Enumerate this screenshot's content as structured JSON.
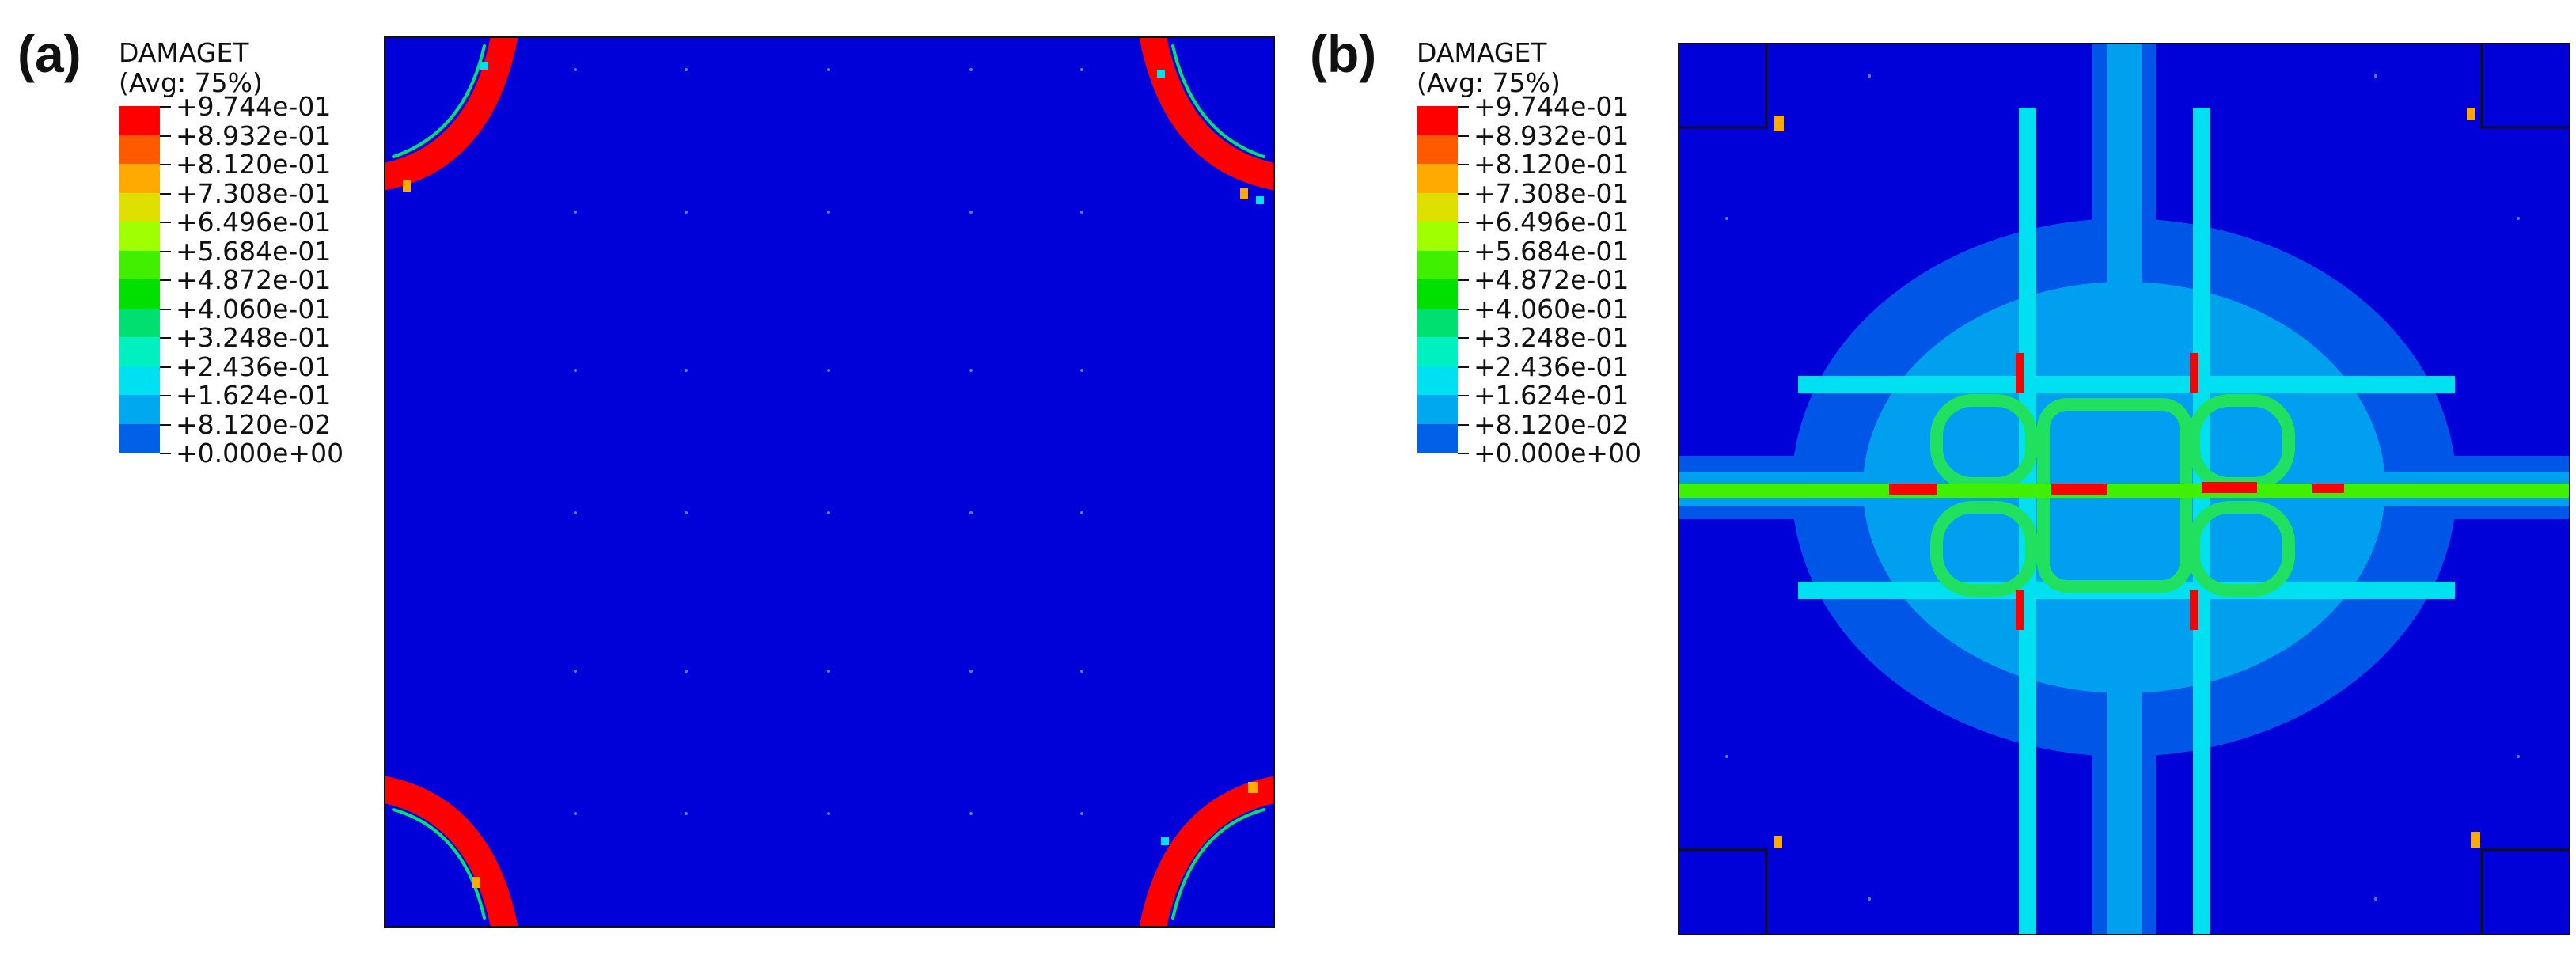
{
  "panels": [
    {
      "label": "(a)",
      "legend": {
        "title_line1": "DAMAGET",
        "title_line2": "(Avg: 75%)",
        "levels": [
          "+9.744e-01",
          "+8.932e-01",
          "+8.120e-01",
          "+7.308e-01",
          "+6.496e-01",
          "+5.684e-01",
          "+4.872e-01",
          "+4.060e-01",
          "+3.248e-01",
          "+2.436e-01",
          "+1.624e-01",
          "+8.120e-02",
          "+0.000e+00"
        ]
      }
    },
    {
      "label": "(b)",
      "legend": {
        "title_line1": "DAMAGET",
        "title_line2": "(Avg: 75%)",
        "levels": [
          "+9.744e-01",
          "+8.932e-01",
          "+8.120e-01",
          "+7.308e-01",
          "+6.496e-01",
          "+5.684e-01",
          "+4.872e-01",
          "+4.060e-01",
          "+3.248e-01",
          "+2.436e-01",
          "+1.624e-01",
          "+8.120e-02",
          "+0.000e+00"
        ]
      }
    }
  ],
  "colors": {
    "scale": [
      "#ff0000",
      "#ff5a00",
      "#ffaa00",
      "#e0e000",
      "#a0ff00",
      "#40f000",
      "#00e000",
      "#00e070",
      "#00f0c0",
      "#00e0f0",
      "#00a8f0",
      "#0060e8",
      "#0000d9"
    ],
    "background": "#0000d9"
  }
}
